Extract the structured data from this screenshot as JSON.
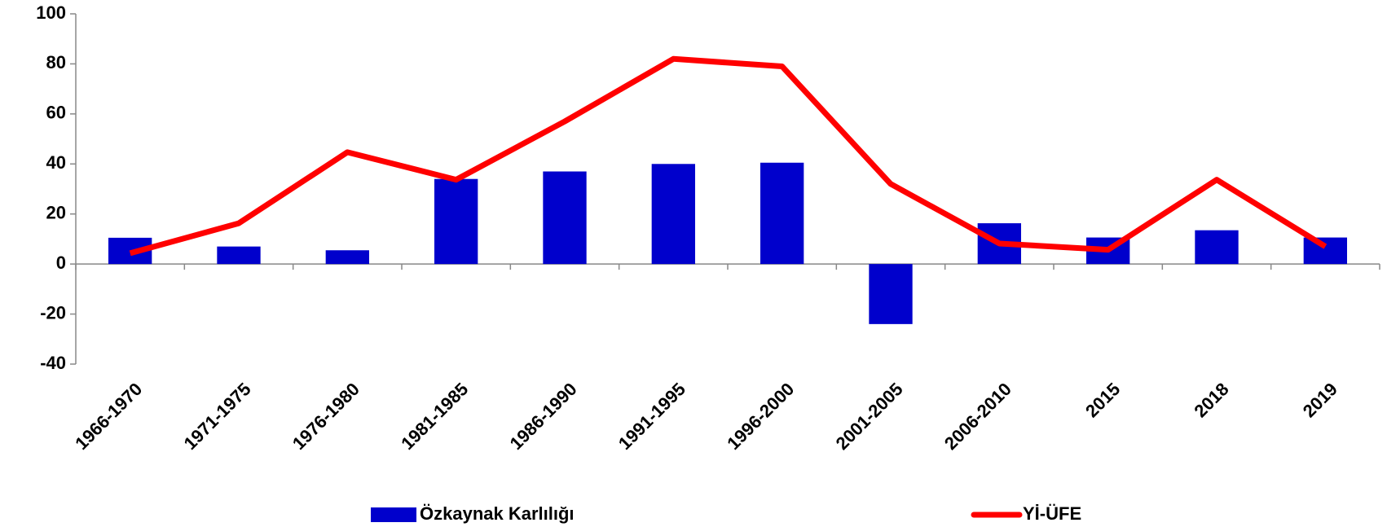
{
  "chart_data": {
    "type": "bar_line",
    "categories": [
      "1966-1970",
      "1971-1975",
      "1976-1980",
      "1981-1985",
      "1986-1990",
      "1991-1995",
      "1996-2000",
      "2001-2005",
      "2006-2010",
      "2015",
      "2018",
      "2019"
    ],
    "series": [
      {
        "name": "Özkaynak Karlılığı",
        "type": "bar",
        "color": "#0000cc",
        "values": [
          10.5,
          7,
          5.5,
          34,
          37,
          40,
          40.5,
          -24,
          16.3,
          10.6,
          13.5,
          10.6
        ]
      },
      {
        "name": "Yİ-ÜFE",
        "type": "line",
        "color": "#ff0000",
        "values": [
          4.3,
          16.3,
          44.7,
          33.7,
          57,
          82,
          79,
          32,
          8.2,
          5.7,
          33.7,
          7
        ]
      }
    ],
    "ylim": [
      -40,
      100
    ],
    "yticks": [
      -40,
      -20,
      0,
      20,
      40,
      60,
      80,
      100
    ],
    "legend": "bottom"
  }
}
